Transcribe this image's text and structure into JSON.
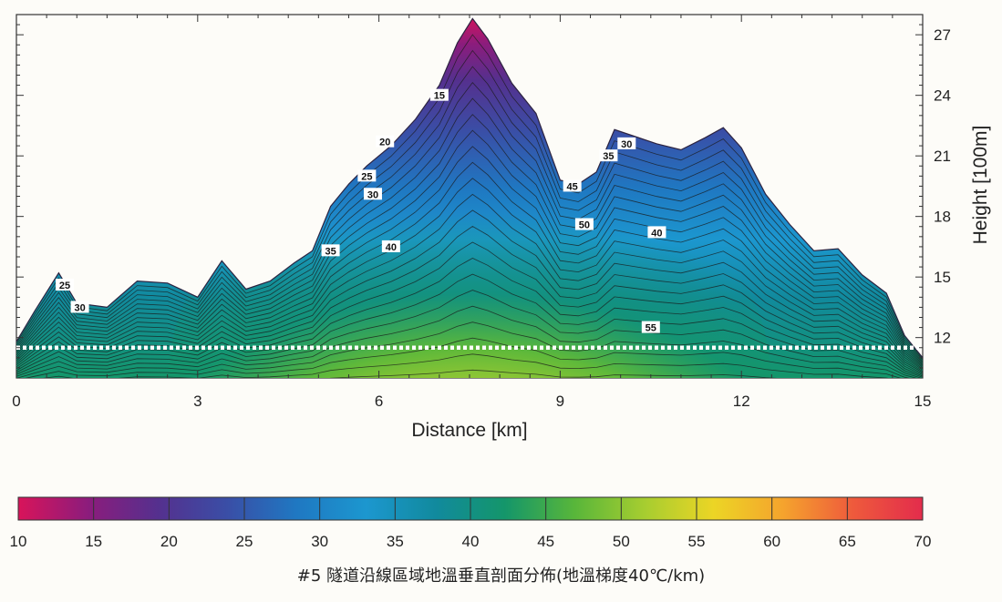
{
  "chart_data": {
    "type": "heatmap",
    "title": "",
    "xlabel": "Distance [km]",
    "ylabel": "Height [100m]",
    "xlim": [
      0,
      15
    ],
    "ylim": [
      10,
      28
    ],
    "x_ticks": [
      0,
      3,
      6,
      9,
      12,
      15
    ],
    "y_ticks": [
      12,
      15,
      18,
      21,
      24,
      27
    ],
    "terrain_profile": {
      "x": [
        0,
        0.3,
        0.7,
        1.0,
        1.5,
        2.0,
        2.5,
        3.0,
        3.4,
        3.8,
        4.2,
        4.6,
        4.9,
        5.2,
        5.5,
        5.8,
        6.2,
        6.6,
        7.0,
        7.3,
        7.55,
        7.8,
        8.2,
        8.6,
        9.0,
        9.3,
        9.6,
        9.9,
        10.2,
        10.6,
        11.0,
        11.4,
        11.7,
        12.0,
        12.4,
        12.8,
        13.2,
        13.6,
        14.0,
        14.4,
        14.7,
        15.0
      ],
      "height": [
        11.8,
        13.3,
        15.2,
        13.7,
        13.5,
        14.8,
        14.7,
        14.0,
        15.8,
        14.4,
        14.8,
        15.7,
        16.3,
        18.5,
        19.6,
        20.5,
        21.5,
        22.8,
        24.5,
        26.6,
        27.8,
        26.8,
        24.6,
        23.1,
        19.8,
        19.6,
        20.2,
        22.3,
        22.0,
        21.6,
        21.3,
        21.9,
        22.4,
        21.4,
        19.1,
        17.6,
        16.3,
        16.4,
        15.1,
        14.2,
        12.1,
        11.0
      ]
    },
    "tunnel_level": 11.5,
    "contour_labels": [
      {
        "value": 15,
        "x": 7.0,
        "height": 24.0
      },
      {
        "value": 20,
        "x": 6.1,
        "height": 21.7
      },
      {
        "value": 25,
        "x": 5.8,
        "height": 20.0
      },
      {
        "value": 30,
        "x": 5.9,
        "height": 19.1
      },
      {
        "value": 35,
        "x": 5.2,
        "height": 16.3
      },
      {
        "value": 40,
        "x": 6.2,
        "height": 16.5
      },
      {
        "value": 45,
        "x": 9.2,
        "height": 19.5
      },
      {
        "value": 50,
        "x": 9.4,
        "height": 17.6
      },
      {
        "value": 40,
        "x": 10.6,
        "height": 17.2
      },
      {
        "value": 35,
        "x": 9.8,
        "height": 21.0
      },
      {
        "value": 30,
        "x": 10.1,
        "height": 21.6
      },
      {
        "value": 25,
        "x": 0.8,
        "height": 14.6
      },
      {
        "value": 30,
        "x": 1.05,
        "height": 13.5
      },
      {
        "value": 55,
        "x": 10.5,
        "height": 12.5
      }
    ],
    "colorbar": {
      "range": [
        10,
        70
      ],
      "ticks": [
        10,
        15,
        20,
        25,
        30,
        35,
        40,
        45,
        50,
        55,
        60,
        65,
        70
      ],
      "colors": [
        "#d8145a",
        "#8c1c7c",
        "#55308e",
        "#3a4ea6",
        "#1f78c2",
        "#1c97cf",
        "#118a9d",
        "#14966a",
        "#58b63a",
        "#a6cd30",
        "#ecd525",
        "#f5a32d",
        "#ee5a3c",
        "#e32c4c"
      ]
    },
    "caption": "#5 隧道沿線區域地溫垂直剖面分佈(地溫梯度40℃/km)"
  }
}
